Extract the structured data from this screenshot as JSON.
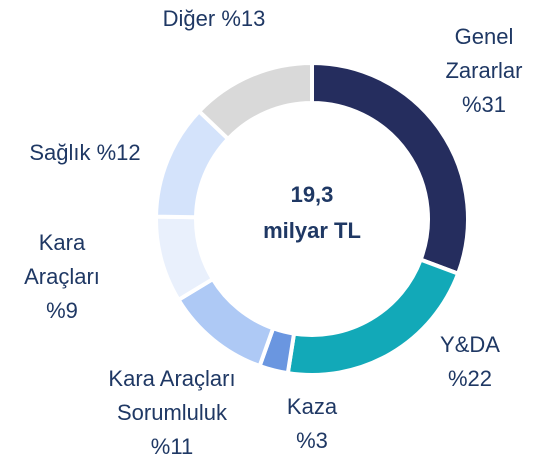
{
  "chart_data": {
    "type": "donut",
    "categories": [
      "Genel Zararlar",
      "Y&DA",
      "Kaza",
      "Kara Araçları Sorumluluk",
      "Kara Araçları",
      "Sağlık",
      "Diğer"
    ],
    "values": [
      31,
      22,
      3,
      11,
      9,
      12,
      13
    ],
    "value_labels": [
      "%31",
      "%22",
      "%3",
      "%11",
      "%9",
      "%12",
      "%13"
    ],
    "colors": [
      "#252d5e",
      "#12a9b8",
      "#6a96e0",
      "#aec9f5",
      "#e9f0fc",
      "#d4e3fb",
      "#d9d9d9"
    ],
    "center_label": [
      "19,3",
      "milyar TL"
    ]
  }
}
